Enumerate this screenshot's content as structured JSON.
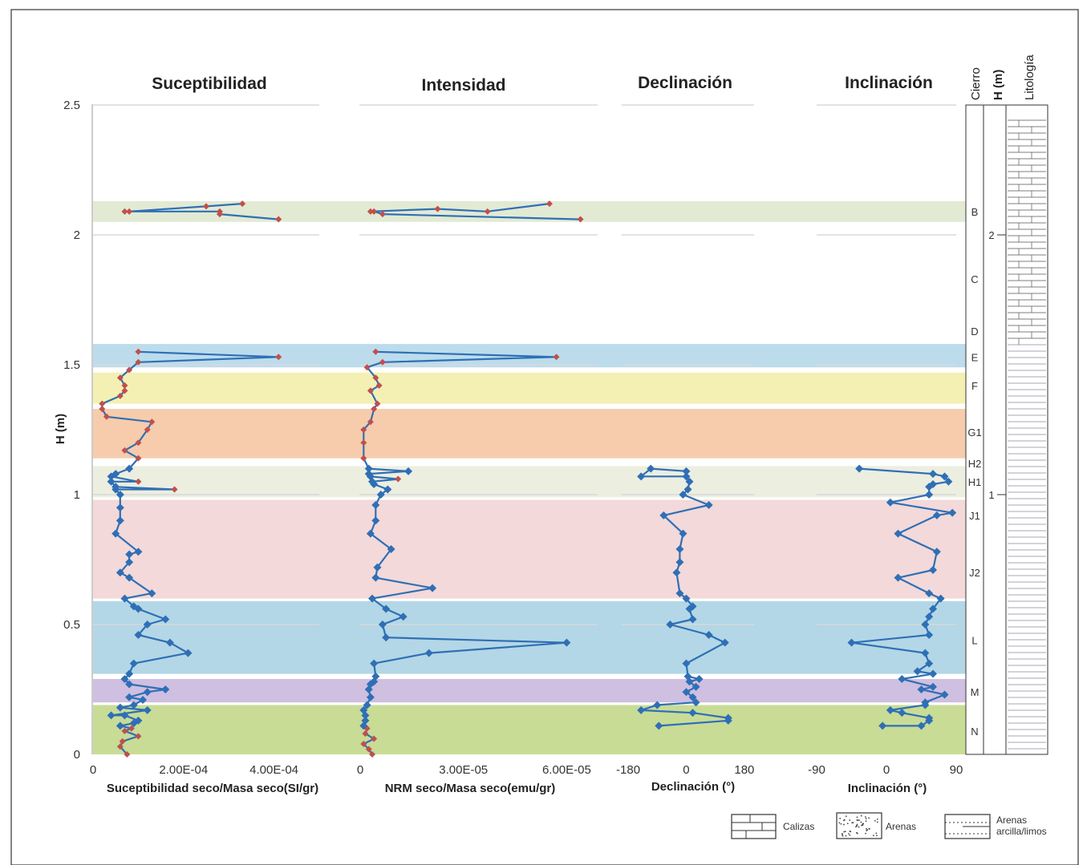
{
  "figure": {
    "ylabel": "H (m)",
    "y_ticks": [
      0,
      0.5,
      1,
      1.5,
      2,
      2.5
    ],
    "ylim": [
      0,
      2.5
    ]
  },
  "bands": [
    {
      "label": "N",
      "from": 0.0,
      "to": 0.19,
      "color": "#c8dc96"
    },
    {
      "label": "M",
      "from": 0.2,
      "to": 0.29,
      "color": "#cfbfe0"
    },
    {
      "label": "L",
      "from": 0.31,
      "to": 0.59,
      "color": "#b3d7e6"
    },
    {
      "label": "J2",
      "from": 0.6,
      "to": 0.98,
      "color": "#f3d9d9"
    },
    {
      "label": "H",
      "from": 0.99,
      "to": 1.11,
      "color": "#eceee0"
    },
    {
      "label": "G1",
      "from": 1.14,
      "to": 1.33,
      "color": "#f6ccac"
    },
    {
      "label": "F",
      "from": 1.35,
      "to": 1.47,
      "color": "#f4f0b4"
    },
    {
      "label": "E",
      "from": 1.49,
      "to": 1.58,
      "color": "#bcdcec"
    },
    {
      "label": "B",
      "from": 2.05,
      "to": 2.13,
      "color": "#e2ead4"
    }
  ],
  "chart_data": [
    {
      "type": "line",
      "title": "Suceptibilidad",
      "xlabel": "Suceptibilidad seco/Masa seco(SI/gr)",
      "x_ticks": [
        0,
        0.0002,
        0.0004
      ],
      "x_tick_labels": [
        "0",
        "2.00E-04",
        "4.00E-04"
      ],
      "xlim": [
        0,
        0.0005
      ],
      "series_color": "#2f6fb6",
      "marker": "diamond",
      "points": [
        {
          "x": 7.5e-05,
          "y": 0.0,
          "c": "r"
        },
        {
          "x": 6e-05,
          "y": 0.03,
          "c": "r"
        },
        {
          "x": 6.5e-05,
          "y": 0.05,
          "c": "r"
        },
        {
          "x": 0.0001,
          "y": 0.07,
          "c": "r"
        },
        {
          "x": 7e-05,
          "y": 0.09,
          "c": "r"
        },
        {
          "x": 8.5e-05,
          "y": 0.1,
          "c": "r"
        },
        {
          "x": 6e-05,
          "y": 0.11,
          "c": "b"
        },
        {
          "x": 9e-05,
          "y": 0.12,
          "c": "b"
        },
        {
          "x": 0.0001,
          "y": 0.13,
          "c": "b"
        },
        {
          "x": 7e-05,
          "y": 0.15,
          "c": "b"
        },
        {
          "x": 4e-05,
          "y": 0.15,
          "c": "b"
        },
        {
          "x": 0.00012,
          "y": 0.17,
          "c": "b"
        },
        {
          "x": 6e-05,
          "y": 0.18,
          "c": "b"
        },
        {
          "x": 9e-05,
          "y": 0.19,
          "c": "b"
        },
        {
          "x": 0.00011,
          "y": 0.21,
          "c": "b"
        },
        {
          "x": 8e-05,
          "y": 0.22,
          "c": "b"
        },
        {
          "x": 0.00012,
          "y": 0.24,
          "c": "b"
        },
        {
          "x": 0.00016,
          "y": 0.25,
          "c": "b"
        },
        {
          "x": 8e-05,
          "y": 0.27,
          "c": "b"
        },
        {
          "x": 7e-05,
          "y": 0.29,
          "c": "b"
        },
        {
          "x": 8e-05,
          "y": 0.31,
          "c": "b"
        },
        {
          "x": 9e-05,
          "y": 0.35,
          "c": "b"
        },
        {
          "x": 0.00021,
          "y": 0.39,
          "c": "b"
        },
        {
          "x": 0.00017,
          "y": 0.43,
          "c": "b"
        },
        {
          "x": 0.0001,
          "y": 0.46,
          "c": "b"
        },
        {
          "x": 0.00012,
          "y": 0.5,
          "c": "b"
        },
        {
          "x": 0.00016,
          "y": 0.52,
          "c": "b"
        },
        {
          "x": 0.0001,
          "y": 0.56,
          "c": "b"
        },
        {
          "x": 9e-05,
          "y": 0.57,
          "c": "b"
        },
        {
          "x": 7e-05,
          "y": 0.6,
          "c": "b"
        },
        {
          "x": 0.00013,
          "y": 0.62,
          "c": "b"
        },
        {
          "x": 8e-05,
          "y": 0.68,
          "c": "b"
        },
        {
          "x": 6e-05,
          "y": 0.7,
          "c": "b"
        },
        {
          "x": 8e-05,
          "y": 0.74,
          "c": "b"
        },
        {
          "x": 8e-05,
          "y": 0.77,
          "c": "b"
        },
        {
          "x": 0.0001,
          "y": 0.78,
          "c": "b"
        },
        {
          "x": 5e-05,
          "y": 0.85,
          "c": "b"
        },
        {
          "x": 6e-05,
          "y": 0.9,
          "c": "b"
        },
        {
          "x": 6e-05,
          "y": 0.95,
          "c": "b"
        },
        {
          "x": 6e-05,
          "y": 1.0,
          "c": "b"
        },
        {
          "x": 5e-05,
          "y": 1.02,
          "c": "b"
        },
        {
          "x": 0.00018,
          "y": 1.02,
          "c": "r"
        },
        {
          "x": 5e-05,
          "y": 1.03,
          "c": "b"
        },
        {
          "x": 4e-05,
          "y": 1.05,
          "c": "b"
        },
        {
          "x": 0.0001,
          "y": 1.05,
          "c": "r"
        },
        {
          "x": 4e-05,
          "y": 1.07,
          "c": "b"
        },
        {
          "x": 5e-05,
          "y": 1.08,
          "c": "b"
        },
        {
          "x": 8e-05,
          "y": 1.1,
          "c": "b"
        },
        {
          "x": 0.0001,
          "y": 1.14,
          "c": "r"
        },
        {
          "x": 7e-05,
          "y": 1.17,
          "c": "r"
        },
        {
          "x": 0.0001,
          "y": 1.2,
          "c": "r"
        },
        {
          "x": 0.00012,
          "y": 1.25,
          "c": "r"
        },
        {
          "x": 0.00013,
          "y": 1.28,
          "c": "r"
        },
        {
          "x": 3e-05,
          "y": 1.3,
          "c": "r"
        },
        {
          "x": 2e-05,
          "y": 1.33,
          "c": "r"
        },
        {
          "x": 2e-05,
          "y": 1.35,
          "c": "r"
        },
        {
          "x": 6e-05,
          "y": 1.38,
          "c": "r"
        },
        {
          "x": 7e-05,
          "y": 1.4,
          "c": "r"
        },
        {
          "x": 7e-05,
          "y": 1.42,
          "c": "r"
        },
        {
          "x": 6e-05,
          "y": 1.45,
          "c": "r"
        },
        {
          "x": 8e-05,
          "y": 1.48,
          "c": "r"
        },
        {
          "x": 0.0001,
          "y": 1.51,
          "c": "r"
        },
        {
          "x": 0.00041,
          "y": 1.53,
          "c": "r"
        },
        {
          "x": 0.0001,
          "y": 1.55,
          "c": "r"
        },
        {
          "x": 0.00041,
          "y": 2.06,
          "c": "r",
          "g": 1
        },
        {
          "x": 0.00028,
          "y": 2.08,
          "c": "r"
        },
        {
          "x": 0.00028,
          "y": 2.09,
          "c": "r"
        },
        {
          "x": 7e-05,
          "y": 2.09,
          "c": "r"
        },
        {
          "x": 8e-05,
          "y": 2.09,
          "c": "r"
        },
        {
          "x": 0.00025,
          "y": 2.11,
          "c": "r"
        },
        {
          "x": 0.00033,
          "y": 2.12,
          "c": "r"
        }
      ]
    },
    {
      "type": "line",
      "title": "Intensidad",
      "xlabel": "NRM seco/Masa seco(emu/gr)",
      "x_ticks": [
        0,
        3e-05,
        6e-05
      ],
      "x_tick_labels": [
        "0",
        "3.00E-05",
        "6.00E-05"
      ],
      "xlim": [
        0,
        6.9e-05
      ],
      "series_color": "#2f6fb6",
      "marker": "diamond",
      "points": [
        {
          "x": 3.5e-06,
          "y": 0.0,
          "c": "r"
        },
        {
          "x": 2.5e-06,
          "y": 0.02,
          "c": "r"
        },
        {
          "x": 1e-06,
          "y": 0.04,
          "c": "r"
        },
        {
          "x": 4e-06,
          "y": 0.06,
          "c": "r"
        },
        {
          "x": 1.5e-06,
          "y": 0.08,
          "c": "r"
        },
        {
          "x": 2e-06,
          "y": 0.1,
          "c": "r"
        },
        {
          "x": 1e-06,
          "y": 0.11,
          "c": "b"
        },
        {
          "x": 1.5e-06,
          "y": 0.13,
          "c": "b"
        },
        {
          "x": 1.5e-06,
          "y": 0.15,
          "c": "b"
        },
        {
          "x": 1e-06,
          "y": 0.17,
          "c": "b"
        },
        {
          "x": 2e-06,
          "y": 0.19,
          "c": "b"
        },
        {
          "x": 3e-06,
          "y": 0.22,
          "c": "b"
        },
        {
          "x": 2.5e-06,
          "y": 0.25,
          "c": "b"
        },
        {
          "x": 3e-06,
          "y": 0.27,
          "c": "b"
        },
        {
          "x": 4e-06,
          "y": 0.28,
          "c": "b"
        },
        {
          "x": 4.5e-06,
          "y": 0.3,
          "c": "b"
        },
        {
          "x": 4e-06,
          "y": 0.35,
          "c": "b"
        },
        {
          "x": 2e-05,
          "y": 0.39,
          "c": "b"
        },
        {
          "x": 6e-05,
          "y": 0.43,
          "c": "b"
        },
        {
          "x": 7.5e-06,
          "y": 0.45,
          "c": "b"
        },
        {
          "x": 6.5e-06,
          "y": 0.5,
          "c": "b"
        },
        {
          "x": 1.25e-05,
          "y": 0.53,
          "c": "b"
        },
        {
          "x": 7.5e-06,
          "y": 0.56,
          "c": "b"
        },
        {
          "x": 3.5e-06,
          "y": 0.6,
          "c": "b"
        },
        {
          "x": 2.1e-05,
          "y": 0.64,
          "c": "b"
        },
        {
          "x": 4.5e-06,
          "y": 0.68,
          "c": "b"
        },
        {
          "x": 5e-06,
          "y": 0.72,
          "c": "b"
        },
        {
          "x": 9e-06,
          "y": 0.79,
          "c": "b"
        },
        {
          "x": 3e-06,
          "y": 0.85,
          "c": "b"
        },
        {
          "x": 4.5e-06,
          "y": 0.9,
          "c": "b"
        },
        {
          "x": 4.5e-06,
          "y": 0.96,
          "c": "b"
        },
        {
          "x": 6e-06,
          "y": 1.0,
          "c": "b"
        },
        {
          "x": 8e-06,
          "y": 1.02,
          "c": "b"
        },
        {
          "x": 4e-06,
          "y": 1.04,
          "c": "b"
        },
        {
          "x": 3.5e-06,
          "y": 1.05,
          "c": "b"
        },
        {
          "x": 1.1e-05,
          "y": 1.06,
          "c": "r"
        },
        {
          "x": 3e-06,
          "y": 1.07,
          "c": "b"
        },
        {
          "x": 2.5e-06,
          "y": 1.08,
          "c": "b"
        },
        {
          "x": 1.4e-05,
          "y": 1.09,
          "c": "b"
        },
        {
          "x": 2.5e-06,
          "y": 1.1,
          "c": "b"
        },
        {
          "x": 1e-06,
          "y": 1.14,
          "c": "r"
        },
        {
          "x": 1e-06,
          "y": 1.2,
          "c": "r"
        },
        {
          "x": 1e-06,
          "y": 1.25,
          "c": "r"
        },
        {
          "x": 3e-06,
          "y": 1.28,
          "c": "r"
        },
        {
          "x": 4e-06,
          "y": 1.33,
          "c": "r"
        },
        {
          "x": 5e-06,
          "y": 1.35,
          "c": "r"
        },
        {
          "x": 3e-06,
          "y": 1.4,
          "c": "r"
        },
        {
          "x": 5.5e-06,
          "y": 1.42,
          "c": "r"
        },
        {
          "x": 4.5e-06,
          "y": 1.45,
          "c": "r"
        },
        {
          "x": 2e-06,
          "y": 1.49,
          "c": "r"
        },
        {
          "x": 6.5e-06,
          "y": 1.51,
          "c": "r"
        },
        {
          "x": 5.7e-05,
          "y": 1.53,
          "c": "r"
        },
        {
          "x": 4.5e-06,
          "y": 1.55,
          "c": "r"
        },
        {
          "x": 6.4e-05,
          "y": 2.06,
          "c": "r",
          "g": 1
        },
        {
          "x": 6.5e-06,
          "y": 2.08,
          "c": "r"
        },
        {
          "x": 4e-06,
          "y": 2.09,
          "c": "r"
        },
        {
          "x": 3e-06,
          "y": 2.09,
          "c": "r"
        },
        {
          "x": 2.25e-05,
          "y": 2.1,
          "c": "r"
        },
        {
          "x": 3.7e-05,
          "y": 2.09,
          "c": "r"
        },
        {
          "x": 5.5e-05,
          "y": 2.12,
          "c": "r"
        }
      ]
    },
    {
      "type": "line",
      "title": "Declinación",
      "xlabel": "Declinación (°)",
      "x_ticks": [
        -180,
        0,
        180
      ],
      "x_tick_labels": [
        "-180",
        "0",
        "180"
      ],
      "xlim": [
        -200,
        220
      ],
      "series_color": "#2f6fb6",
      "marker": "diamond",
      "points": [
        {
          "x": -85,
          "y": 0.11
        },
        {
          "x": 130,
          "y": 0.13
        },
        {
          "x": 130,
          "y": 0.14
        },
        {
          "x": 20,
          "y": 0.16
        },
        {
          "x": -140,
          "y": 0.17
        },
        {
          "x": -90,
          "y": 0.19
        },
        {
          "x": 30,
          "y": 0.2
        },
        {
          "x": 20,
          "y": 0.22
        },
        {
          "x": 0,
          "y": 0.24
        },
        {
          "x": 30,
          "y": 0.26
        },
        {
          "x": 10,
          "y": 0.28
        },
        {
          "x": 40,
          "y": 0.29
        },
        {
          "x": 5,
          "y": 0.3
        },
        {
          "x": 0,
          "y": 0.35
        },
        {
          "x": 120,
          "y": 0.43
        },
        {
          "x": 70,
          "y": 0.46
        },
        {
          "x": -50,
          "y": 0.5
        },
        {
          "x": 20,
          "y": 0.52
        },
        {
          "x": 10,
          "y": 0.56
        },
        {
          "x": 20,
          "y": 0.57
        },
        {
          "x": 0,
          "y": 0.6
        },
        {
          "x": -20,
          "y": 0.62
        },
        {
          "x": -30,
          "y": 0.7
        },
        {
          "x": -20,
          "y": 0.74
        },
        {
          "x": -20,
          "y": 0.79
        },
        {
          "x": -10,
          "y": 0.85
        },
        {
          "x": -70,
          "y": 0.92
        },
        {
          "x": 70,
          "y": 0.96
        },
        {
          "x": -10,
          "y": 1.0
        },
        {
          "x": 5,
          "y": 1.02
        },
        {
          "x": 10,
          "y": 1.05
        },
        {
          "x": 0,
          "y": 1.07
        },
        {
          "x": -140,
          "y": 1.07
        },
        {
          "x": -110,
          "y": 1.1
        },
        {
          "x": 0,
          "y": 1.09
        }
      ]
    },
    {
      "type": "line",
      "title": "Inclinación",
      "xlabel": "Inclinación (°)",
      "x_ticks": [
        -90,
        0,
        90
      ],
      "x_tick_labels": [
        "-90",
        "0",
        "90"
      ],
      "xlim": [
        -90,
        90
      ],
      "series_color": "#2f6fb6",
      "marker": "diamond",
      "points": [
        {
          "x": -5,
          "y": 0.11
        },
        {
          "x": 45,
          "y": 0.11
        },
        {
          "x": 55,
          "y": 0.13
        },
        {
          "x": 55,
          "y": 0.14
        },
        {
          "x": 20,
          "y": 0.16
        },
        {
          "x": 5,
          "y": 0.17
        },
        {
          "x": 50,
          "y": 0.19
        },
        {
          "x": 50,
          "y": 0.2
        },
        {
          "x": 75,
          "y": 0.23
        },
        {
          "x": 45,
          "y": 0.25
        },
        {
          "x": 60,
          "y": 0.26
        },
        {
          "x": 20,
          "y": 0.29
        },
        {
          "x": 60,
          "y": 0.31
        },
        {
          "x": 40,
          "y": 0.32
        },
        {
          "x": 55,
          "y": 0.35
        },
        {
          "x": 50,
          "y": 0.39
        },
        {
          "x": -45,
          "y": 0.43
        },
        {
          "x": 55,
          "y": 0.46
        },
        {
          "x": 50,
          "y": 0.5
        },
        {
          "x": 55,
          "y": 0.53
        },
        {
          "x": 60,
          "y": 0.56
        },
        {
          "x": 70,
          "y": 0.6
        },
        {
          "x": 55,
          "y": 0.62
        },
        {
          "x": 15,
          "y": 0.68
        },
        {
          "x": 60,
          "y": 0.71
        },
        {
          "x": 65,
          "y": 0.78
        },
        {
          "x": 15,
          "y": 0.85
        },
        {
          "x": 65,
          "y": 0.92
        },
        {
          "x": 85,
          "y": 0.93
        },
        {
          "x": 5,
          "y": 0.97
        },
        {
          "x": 55,
          "y": 1.0
        },
        {
          "x": 55,
          "y": 1.03
        },
        {
          "x": 60,
          "y": 1.04
        },
        {
          "x": 80,
          "y": 1.05
        },
        {
          "x": 75,
          "y": 1.07
        },
        {
          "x": 60,
          "y": 1.08
        },
        {
          "x": -35,
          "y": 1.1
        }
      ]
    }
  ],
  "column": {
    "cierro_title": "Cierro",
    "h_title": "H (m)",
    "lito_title": "Litología",
    "cierro_labels": [
      {
        "text": "B",
        "y": 2.09
      },
      {
        "text": "C",
        "y": 1.83
      },
      {
        "text": "D",
        "y": 1.63
      },
      {
        "text": "E",
        "y": 1.53
      },
      {
        "text": "F",
        "y": 1.42
      },
      {
        "text": "G1",
        "y": 1.24
      },
      {
        "text": "H2",
        "y": 1.12
      },
      {
        "text": "H1",
        "y": 1.05
      },
      {
        "text": "J1",
        "y": 0.92
      },
      {
        "text": "J2",
        "y": 0.7
      },
      {
        "text": "L",
        "y": 0.44
      },
      {
        "text": "M",
        "y": 0.24
      },
      {
        "text": "N",
        "y": 0.09
      }
    ],
    "h_labels": [
      {
        "text": "2",
        "y": 2.0
      },
      {
        "text": "1",
        "y": 1.0
      }
    ]
  },
  "legend": {
    "calizas": "Calizas",
    "arenas": "Arenas",
    "arenas_arcilla_1": "Arenas",
    "arenas_arcilla_2": "arcilla/limos"
  },
  "colors": {
    "series": "#2f6fb6",
    "red_marker": "#c0504d",
    "blue_marker": "#2f6fb6"
  }
}
